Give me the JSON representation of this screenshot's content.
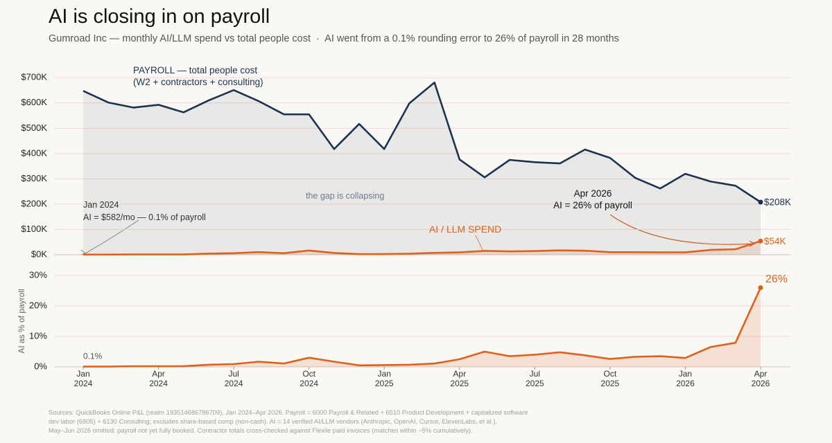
{
  "chart_data": [
    {
      "type": "line",
      "title": "AI is closing in on payroll",
      "subtitle": "Gumroad Inc — monthly AI/LLM spend vs total people cost  ·  AI went from a 0.1% rounding error to 26% of payroll in 28 months",
      "categories": [
        null,
        null,
        null,
        null,
        null,
        null,
        null,
        null,
        null,
        null,
        null,
        null,
        null,
        null,
        null,
        null,
        null,
        null,
        null,
        null,
        null,
        null,
        null,
        null,
        null,
        null,
        null,
        null
      ],
      "series": [
        {
          "name": "PAYROLL — total people cost",
          "color": "#1b3350",
          "values": [
            648000,
            602000,
            582000,
            593000,
            563000,
            610000,
            651000,
            607000,
            555000,
            555000,
            418000,
            517000,
            418000,
            599000,
            681000,
            377000,
            306000,
            375000,
            366000,
            361000,
            416000,
            383000,
            304000,
            262000,
            320000,
            290000,
            273000,
            208000
          ],
          "value_labels": [
            null,
            null,
            null,
            null,
            null,
            null,
            null,
            null,
            null,
            null,
            null,
            null,
            null,
            null,
            null,
            null,
            null,
            null,
            null,
            null,
            null,
            null,
            null,
            null,
            null,
            null,
            null,
            "$208K"
          ]
        },
        {
          "name": "AI / LLM SPEND",
          "color": "#e0601a",
          "values": [
            582,
            600,
            1200,
            1200,
            1100,
            4300,
            5900,
            10300,
            6100,
            16700,
            7100,
            2600,
            2500,
            4200,
            7500,
            9400,
            15300,
            13100,
            14600,
            17300,
            15800,
            10000,
            10000,
            9200,
            9300,
            18900,
            21600,
            54000
          ],
          "value_labels": [
            null,
            null,
            null,
            null,
            null,
            null,
            null,
            null,
            null,
            null,
            null,
            null,
            null,
            null,
            null,
            null,
            null,
            null,
            null,
            null,
            null,
            null,
            null,
            null,
            null,
            null,
            null,
            "$54K"
          ]
        }
      ],
      "annotations": [
        "(W2 + contractors + consulting)",
        "the gap is collapsing",
        "Jan 2024\nAI = $582/mo — 0.1% of payroll",
        "Apr 2026\nAI = 26% of payroll"
      ],
      "ylim": [
        0,
        750000
      ],
      "yticks": [
        {
          "value": 0,
          "label": "$0K"
        },
        {
          "value": 100000,
          "label": "$100K"
        },
        {
          "value": 200000,
          "label": "$200K"
        },
        {
          "value": 300000,
          "label": "$300K"
        },
        {
          "value": 400000,
          "label": "$400K"
        },
        {
          "value": 500000,
          "label": "$500K"
        },
        {
          "value": 600000,
          "label": "$600K"
        },
        {
          "value": 700000,
          "label": "$700K"
        }
      ],
      "grid": true
    },
    {
      "type": "area",
      "y_label": "AI as % of payroll",
      "categories": [
        "Jan\n2024",
        null,
        null,
        "Apr\n2024",
        null,
        null,
        "Jul\n2024",
        null,
        null,
        "Oct\n2024",
        null,
        null,
        "Jan\n2025",
        null,
        null,
        "Apr\n2025",
        null,
        null,
        "Jul\n2025",
        null,
        null,
        "Oct\n2025",
        null,
        null,
        "Jan\n2026",
        null,
        null,
        "Apr\n2026"
      ],
      "color": "#e0601a",
      "values": [
        0.1,
        0.1,
        0.2,
        0.2,
        0.2,
        0.7,
        0.9,
        1.7,
        1.1,
        3.0,
        1.7,
        0.5,
        0.6,
        0.7,
        1.1,
        2.5,
        5.0,
        3.5,
        4.0,
        4.8,
        3.8,
        2.6,
        3.3,
        3.5,
        2.9,
        6.5,
        7.9,
        26
      ],
      "value_labels": [
        "0.1%",
        null,
        null,
        null,
        null,
        null,
        null,
        null,
        null,
        null,
        null,
        null,
        null,
        null,
        null,
        null,
        null,
        null,
        null,
        null,
        null,
        null,
        null,
        null,
        null,
        null,
        null,
        "26%"
      ],
      "ylim": [
        0,
        30
      ],
      "yticks": [
        {
          "value": 0,
          "label": "0%"
        },
        {
          "value": 10,
          "label": "10%"
        },
        {
          "value": 20,
          "label": "20%"
        },
        {
          "value": 30,
          "label": "30%"
        }
      ],
      "grid": true
    }
  ],
  "footnotes": [
    "Sources: QuickBooks Online P&L (realm 193514686786709), Jan 2024–Apr 2026. Payroll = 6000 Payroll & Related + 6510 Product Development + capitalized software",
    "dev labor (6805) + 6130 Consulting; excludes share-based comp (non-cash). AI = 14 verified AI/LLM vendors (Anthropic, OpenAI, Cursor, ElevenLabs, et al.).",
    "May–Jun 2026 omitted: payroll not yet fully booked. Contractor totals cross-checked against Flexile paid invoices (matches within ~5% cumulatively)."
  ]
}
